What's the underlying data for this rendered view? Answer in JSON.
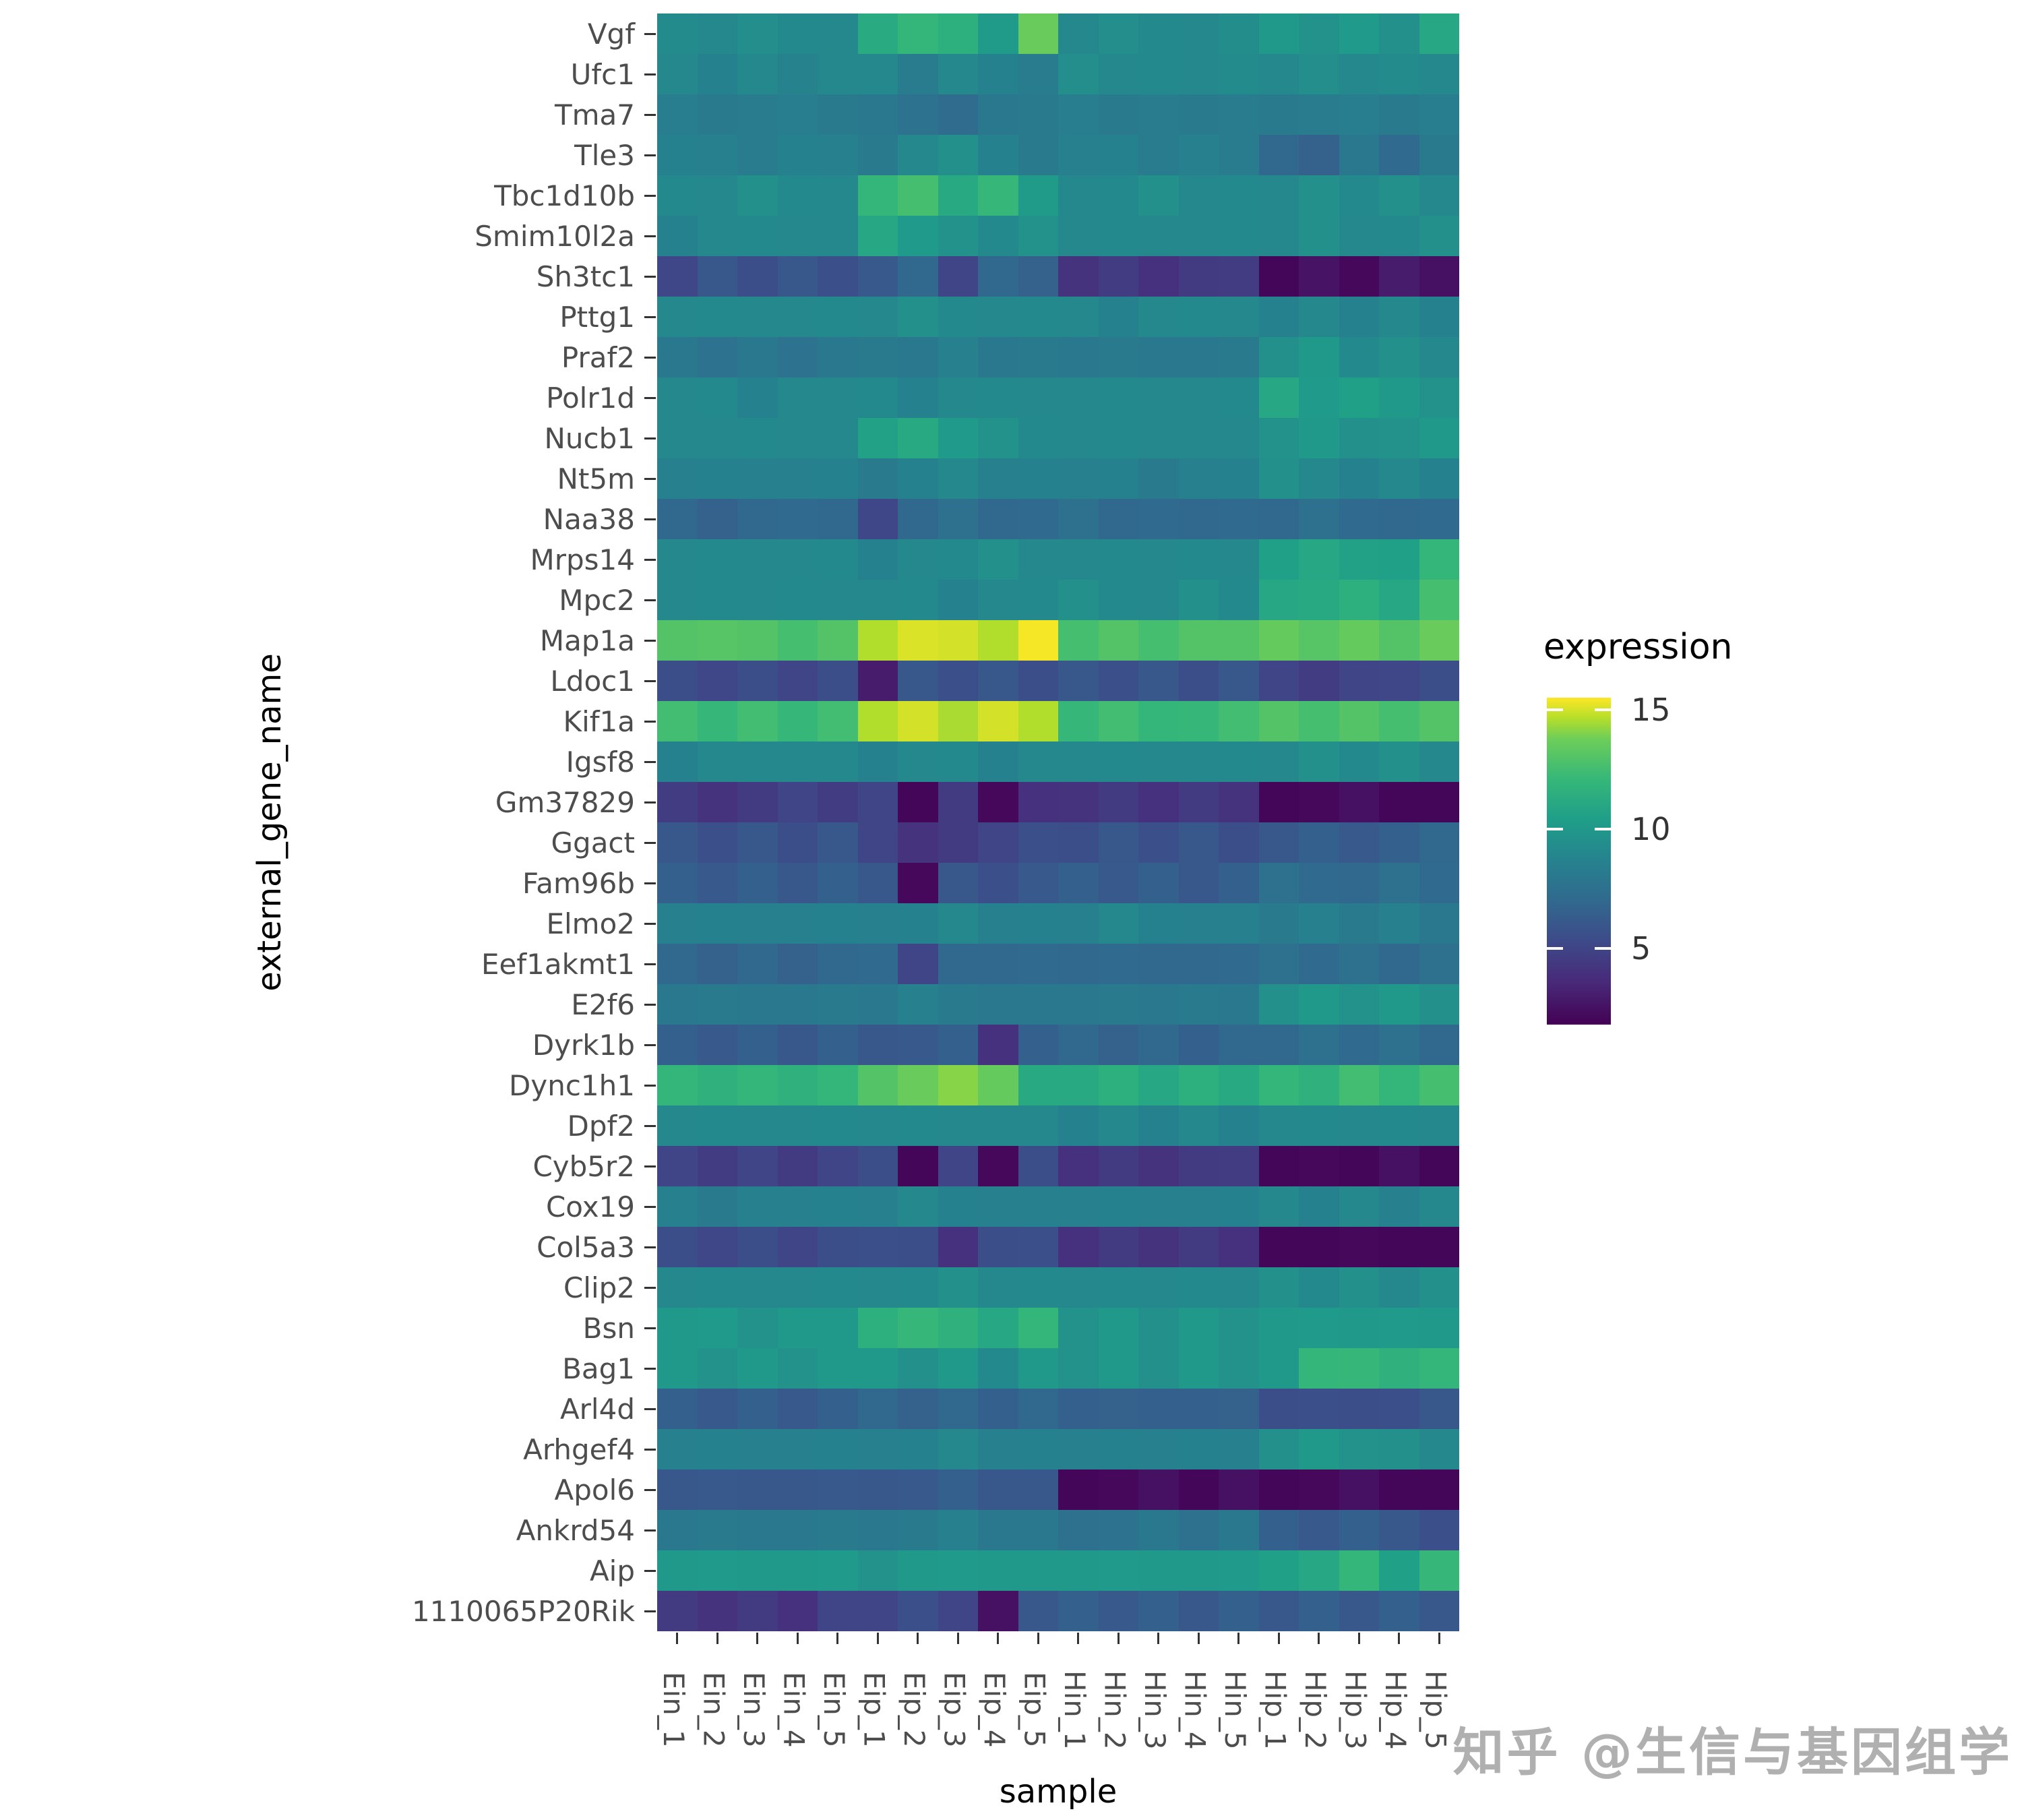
{
  "figure": {
    "background": "#ffffff"
  },
  "watermark": {
    "text": "知乎 @生信与基因组学"
  },
  "viridis_stops": [
    [
      0.0,
      "#440154"
    ],
    [
      0.125,
      "#482878"
    ],
    [
      0.25,
      "#3e4989"
    ],
    [
      0.375,
      "#31688e"
    ],
    [
      0.5,
      "#26828e"
    ],
    [
      0.625,
      "#1f9e89"
    ],
    [
      0.75,
      "#35b779"
    ],
    [
      0.875,
      "#6ece58"
    ],
    [
      0.9375,
      "#b5de2b"
    ],
    [
      1.0,
      "#fde725"
    ]
  ],
  "chart_data": {
    "type": "heatmap",
    "title": "",
    "xlabel": "sample",
    "ylabel": "external_gene_name",
    "legend_title": "expression",
    "colormap": "viridis",
    "color_domain": [
      1.8,
      15.5
    ],
    "legend_ticks": [
      15,
      10,
      5
    ],
    "grid": false,
    "legend_position": "right",
    "columns": [
      "Ein_1",
      "Ein_2",
      "Ein_3",
      "Ein_4",
      "Ein_5",
      "Eip_1",
      "Eip_2",
      "Eip_3",
      "Eip_4",
      "Eip_5",
      "Hin_1",
      "Hin_2",
      "Hin_3",
      "Hin_4",
      "Hin_5",
      "Hip_1",
      "Hip_2",
      "Hip_3",
      "Hip_4",
      "Hip_5"
    ],
    "rows": [
      "Vgf",
      "Ufc1",
      "Tma7",
      "Tle3",
      "Tbc1d10b",
      "Smim10l2a",
      "Sh3tc1",
      "Pttg1",
      "Praf2",
      "Polr1d",
      "Nucb1",
      "Nt5m",
      "Naa38",
      "Mrps14",
      "Mpc2",
      "Map1a",
      "Ldoc1",
      "Kif1a",
      "Igsf8",
      "Gm37829",
      "Ggact",
      "Fam96b",
      "Elmo2",
      "Eef1akmt1",
      "E2f6",
      "Dyrk1b",
      "Dync1h1",
      "Dpf2",
      "Cyb5r2",
      "Cox19",
      "Col5a3",
      "Clip2",
      "Bsn",
      "Bag1",
      "Arl4d",
      "Arhgef4",
      "Apol6",
      "Ankrd54",
      "Aip",
      "1110065P20Rik"
    ],
    "values": [
      [
        9.2,
        9.0,
        9.4,
        9.1,
        9.0,
        11.2,
        12.0,
        11.5,
        10.2,
        13.6,
        9.0,
        9.4,
        9.1,
        9.0,
        9.3,
        10.0,
        9.6,
        10.1,
        9.5,
        11.0
      ],
      [
        9.0,
        8.6,
        9.0,
        8.7,
        9.0,
        9.0,
        8.2,
        9.0,
        8.6,
        8.2,
        9.4,
        9.0,
        9.1,
        9.0,
        9.2,
        9.0,
        9.4,
        9.0,
        9.2,
        9.0
      ],
      [
        8.4,
        8.1,
        8.2,
        8.4,
        8.1,
        8.0,
        7.6,
        7.2,
        8.0,
        8.1,
        8.4,
        8.1,
        8.2,
        8.1,
        8.2,
        8.1,
        8.2,
        8.4,
        8.1,
        8.4
      ],
      [
        8.6,
        8.5,
        8.2,
        8.6,
        8.5,
        8.1,
        9.0,
        9.5,
        8.6,
        8.1,
        8.5,
        8.6,
        8.2,
        8.5,
        8.2,
        7.0,
        6.6,
        8.0,
        7.1,
        8.1
      ],
      [
        9.1,
        9.0,
        9.5,
        9.1,
        9.0,
        12.0,
        12.6,
        11.1,
        12.1,
        10.2,
        9.0,
        9.1,
        9.5,
        9.0,
        9.1,
        9.0,
        9.5,
        9.1,
        9.5,
        9.0
      ],
      [
        8.6,
        9.0,
        9.1,
        9.0,
        9.0,
        11.0,
        10.1,
        9.6,
        9.1,
        9.6,
        9.0,
        9.1,
        9.0,
        9.0,
        9.1,
        9.0,
        9.5,
        9.0,
        9.1,
        9.5
      ],
      [
        5.1,
        6.0,
        5.5,
        6.0,
        5.6,
        6.1,
        7.0,
        5.0,
        7.0,
        6.6,
        4.1,
        4.6,
        4.0,
        4.5,
        4.6,
        2.0,
        2.6,
        2.1,
        3.0,
        2.5
      ],
      [
        9.0,
        9.1,
        9.0,
        9.0,
        9.1,
        9.0,
        9.5,
        9.1,
        9.0,
        9.1,
        9.0,
        8.6,
        9.0,
        9.1,
        9.0,
        8.6,
        9.0,
        8.6,
        9.0,
        8.6
      ],
      [
        8.0,
        7.6,
        8.0,
        7.6,
        8.0,
        8.1,
        8.0,
        8.5,
        8.0,
        8.1,
        8.0,
        8.1,
        8.0,
        8.0,
        8.1,
        9.5,
        10.0,
        9.1,
        9.5,
        9.0
      ],
      [
        9.0,
        9.1,
        8.6,
        9.0,
        9.0,
        9.1,
        8.6,
        9.0,
        9.1,
        9.0,
        9.0,
        9.1,
        9.0,
        9.0,
        9.1,
        11.0,
        10.1,
        10.5,
        10.0,
        9.6
      ],
      [
        9.0,
        9.0,
        9.1,
        9.0,
        9.0,
        10.6,
        11.1,
        10.1,
        9.6,
        9.1,
        9.0,
        9.1,
        9.0,
        9.0,
        9.0,
        9.6,
        10.0,
        9.5,
        9.6,
        10.0
      ],
      [
        8.5,
        8.6,
        8.5,
        8.5,
        8.6,
        8.1,
        8.6,
        9.0,
        8.5,
        8.6,
        8.5,
        8.6,
        8.1,
        8.5,
        8.6,
        9.5,
        9.0,
        8.6,
        9.0,
        8.6
      ],
      [
        7.0,
        6.6,
        7.0,
        7.1,
        7.0,
        5.1,
        7.0,
        7.5,
        7.0,
        7.1,
        7.5,
        7.0,
        7.1,
        7.0,
        7.1,
        7.0,
        7.5,
        7.1,
        7.0,
        7.1
      ],
      [
        9.0,
        9.1,
        9.0,
        9.0,
        9.1,
        8.6,
        9.0,
        9.1,
        9.5,
        9.0,
        9.0,
        9.1,
        9.0,
        9.1,
        9.0,
        10.5,
        11.0,
        10.6,
        10.5,
        12.0
      ],
      [
        9.0,
        9.1,
        9.0,
        9.1,
        9.0,
        9.0,
        9.1,
        8.6,
        9.0,
        9.1,
        9.5,
        9.1,
        9.0,
        9.5,
        9.1,
        11.0,
        11.1,
        11.5,
        11.0,
        12.6
      ],
      [
        13.0,
        13.1,
        13.0,
        12.6,
        13.0,
        14.6,
        15.1,
        15.0,
        14.6,
        15.4,
        12.6,
        13.0,
        12.6,
        13.0,
        13.0,
        13.5,
        13.1,
        13.5,
        13.0,
        13.6
      ],
      [
        5.5,
        5.1,
        5.5,
        5.0,
        5.5,
        3.0,
        6.0,
        5.6,
        6.0,
        5.5,
        6.0,
        5.6,
        6.0,
        5.5,
        6.0,
        5.0,
        4.6,
        5.0,
        5.1,
        5.5
      ],
      [
        12.5,
        12.1,
        12.5,
        12.1,
        12.5,
        14.6,
        15.0,
        14.5,
        15.0,
        14.6,
        12.1,
        12.5,
        12.0,
        12.1,
        12.5,
        13.0,
        12.6,
        13.0,
        12.6,
        13.0
      ],
      [
        8.6,
        9.0,
        9.0,
        9.0,
        9.0,
        8.6,
        9.0,
        9.1,
        8.6,
        9.0,
        9.0,
        9.1,
        9.0,
        9.0,
        9.1,
        9.0,
        9.5,
        9.1,
        9.5,
        9.0
      ],
      [
        4.6,
        4.1,
        4.5,
        5.0,
        4.6,
        5.0,
        2.0,
        4.5,
        2.1,
        4.0,
        4.1,
        4.5,
        4.0,
        4.5,
        4.1,
        2.0,
        2.1,
        2.5,
        2.0,
        2.0
      ],
      [
        6.0,
        5.6,
        6.0,
        5.5,
        6.0,
        5.0,
        4.1,
        4.5,
        5.0,
        5.6,
        5.5,
        6.0,
        5.6,
        6.0,
        5.5,
        6.0,
        6.5,
        6.1,
        6.5,
        7.0
      ],
      [
        6.5,
        6.1,
        6.5,
        6.0,
        6.5,
        6.0,
        2.1,
        6.0,
        5.6,
        6.1,
        6.5,
        6.1,
        6.5,
        6.0,
        6.5,
        7.5,
        7.1,
        7.0,
        7.5,
        7.1
      ],
      [
        8.5,
        8.6,
        8.5,
        8.5,
        8.6,
        8.5,
        8.6,
        9.0,
        8.5,
        8.6,
        8.5,
        9.0,
        8.6,
        8.5,
        8.5,
        8.1,
        8.5,
        8.1,
        8.5,
        8.0
      ],
      [
        7.0,
        6.6,
        7.0,
        6.6,
        7.0,
        7.1,
        5.0,
        7.0,
        7.0,
        7.1,
        7.0,
        7.1,
        7.0,
        7.0,
        7.1,
        7.5,
        7.1,
        7.5,
        7.0,
        7.5
      ],
      [
        8.0,
        8.1,
        8.0,
        8.0,
        8.1,
        8.0,
        8.5,
        8.1,
        8.0,
        8.0,
        8.0,
        8.1,
        8.0,
        8.1,
        8.0,
        9.5,
        10.0,
        9.6,
        10.0,
        9.5
      ],
      [
        6.5,
        6.1,
        6.5,
        6.0,
        6.5,
        6.0,
        6.1,
        6.5,
        4.0,
        6.5,
        7.0,
        6.6,
        7.0,
        6.5,
        7.0,
        7.0,
        7.5,
        7.1,
        7.5,
        7.0
      ],
      [
        12.0,
        11.6,
        12.0,
        11.6,
        12.0,
        13.0,
        13.6,
        14.1,
        13.5,
        11.1,
        11.1,
        11.5,
        11.0,
        11.5,
        11.1,
        12.0,
        11.6,
        12.5,
        12.0,
        12.6
      ],
      [
        9.0,
        9.1,
        9.0,
        9.0,
        9.1,
        9.0,
        9.1,
        9.0,
        9.0,
        9.0,
        8.6,
        9.0,
        8.6,
        9.0,
        8.6,
        9.0,
        9.1,
        9.0,
        9.1,
        9.0
      ],
      [
        5.0,
        4.6,
        5.0,
        4.5,
        5.0,
        5.5,
        2.0,
        5.0,
        2.1,
        5.5,
        4.0,
        4.5,
        4.1,
        4.5,
        4.6,
        2.0,
        2.1,
        2.0,
        2.5,
        2.0
      ],
      [
        8.5,
        8.1,
        8.5,
        8.5,
        8.6,
        8.5,
        9.0,
        8.6,
        8.5,
        8.5,
        8.5,
        8.6,
        8.5,
        8.5,
        8.6,
        9.0,
        8.6,
        9.0,
        8.5,
        9.0
      ],
      [
        5.5,
        5.1,
        5.5,
        5.0,
        5.5,
        5.6,
        5.5,
        4.0,
        5.5,
        5.6,
        4.0,
        4.5,
        4.1,
        4.5,
        4.0,
        2.0,
        2.0,
        2.1,
        2.0,
        2.0
      ],
      [
        9.0,
        9.1,
        9.0,
        9.0,
        9.1,
        9.0,
        9.1,
        9.5,
        9.0,
        9.1,
        9.0,
        9.1,
        9.0,
        9.1,
        9.0,
        9.5,
        9.1,
        9.5,
        9.0,
        9.5
      ],
      [
        10.0,
        10.1,
        9.6,
        10.0,
        10.0,
        11.5,
        12.1,
        11.6,
        11.0,
        12.0,
        9.6,
        10.0,
        9.5,
        10.0,
        9.6,
        10.0,
        10.1,
        10.0,
        10.1,
        10.0
      ],
      [
        10.0,
        9.6,
        10.0,
        9.6,
        10.0,
        10.0,
        9.5,
        10.0,
        9.1,
        10.0,
        9.6,
        10.0,
        9.5,
        10.0,
        9.6,
        10.0,
        12.0,
        12.1,
        11.6,
        12.0
      ],
      [
        6.5,
        6.1,
        6.5,
        6.1,
        6.5,
        7.0,
        6.6,
        7.0,
        6.5,
        7.0,
        6.5,
        6.6,
        6.5,
        6.5,
        6.6,
        5.5,
        5.6,
        5.5,
        5.6,
        6.0
      ],
      [
        8.5,
        8.6,
        8.5,
        8.5,
        8.6,
        8.5,
        8.6,
        9.0,
        8.5,
        8.6,
        8.5,
        8.6,
        8.5,
        8.6,
        8.5,
        9.5,
        10.0,
        9.6,
        9.5,
        9.0
      ],
      [
        6.0,
        6.1,
        6.0,
        6.0,
        6.1,
        6.0,
        6.1,
        6.5,
        6.0,
        6.0,
        2.0,
        2.1,
        2.5,
        2.0,
        2.5,
        2.0,
        2.1,
        2.5,
        2.0,
        2.0
      ],
      [
        8.0,
        8.1,
        8.0,
        8.0,
        8.1,
        8.0,
        8.1,
        8.5,
        8.0,
        8.0,
        7.5,
        7.6,
        8.0,
        7.5,
        8.0,
        6.5,
        6.1,
        6.5,
        6.0,
        5.6
      ],
      [
        10.0,
        10.1,
        10.0,
        10.0,
        10.1,
        9.6,
        10.0,
        10.1,
        10.0,
        10.0,
        10.0,
        10.1,
        10.0,
        10.0,
        10.1,
        10.5,
        11.0,
        12.0,
        10.5,
        12.1
      ],
      [
        4.5,
        4.1,
        4.5,
        4.0,
        5.0,
        5.0,
        5.6,
        5.0,
        2.5,
        6.0,
        6.5,
        6.1,
        6.5,
        6.0,
        6.5,
        6.0,
        6.5,
        6.0,
        6.5,
        6.0
      ]
    ]
  }
}
